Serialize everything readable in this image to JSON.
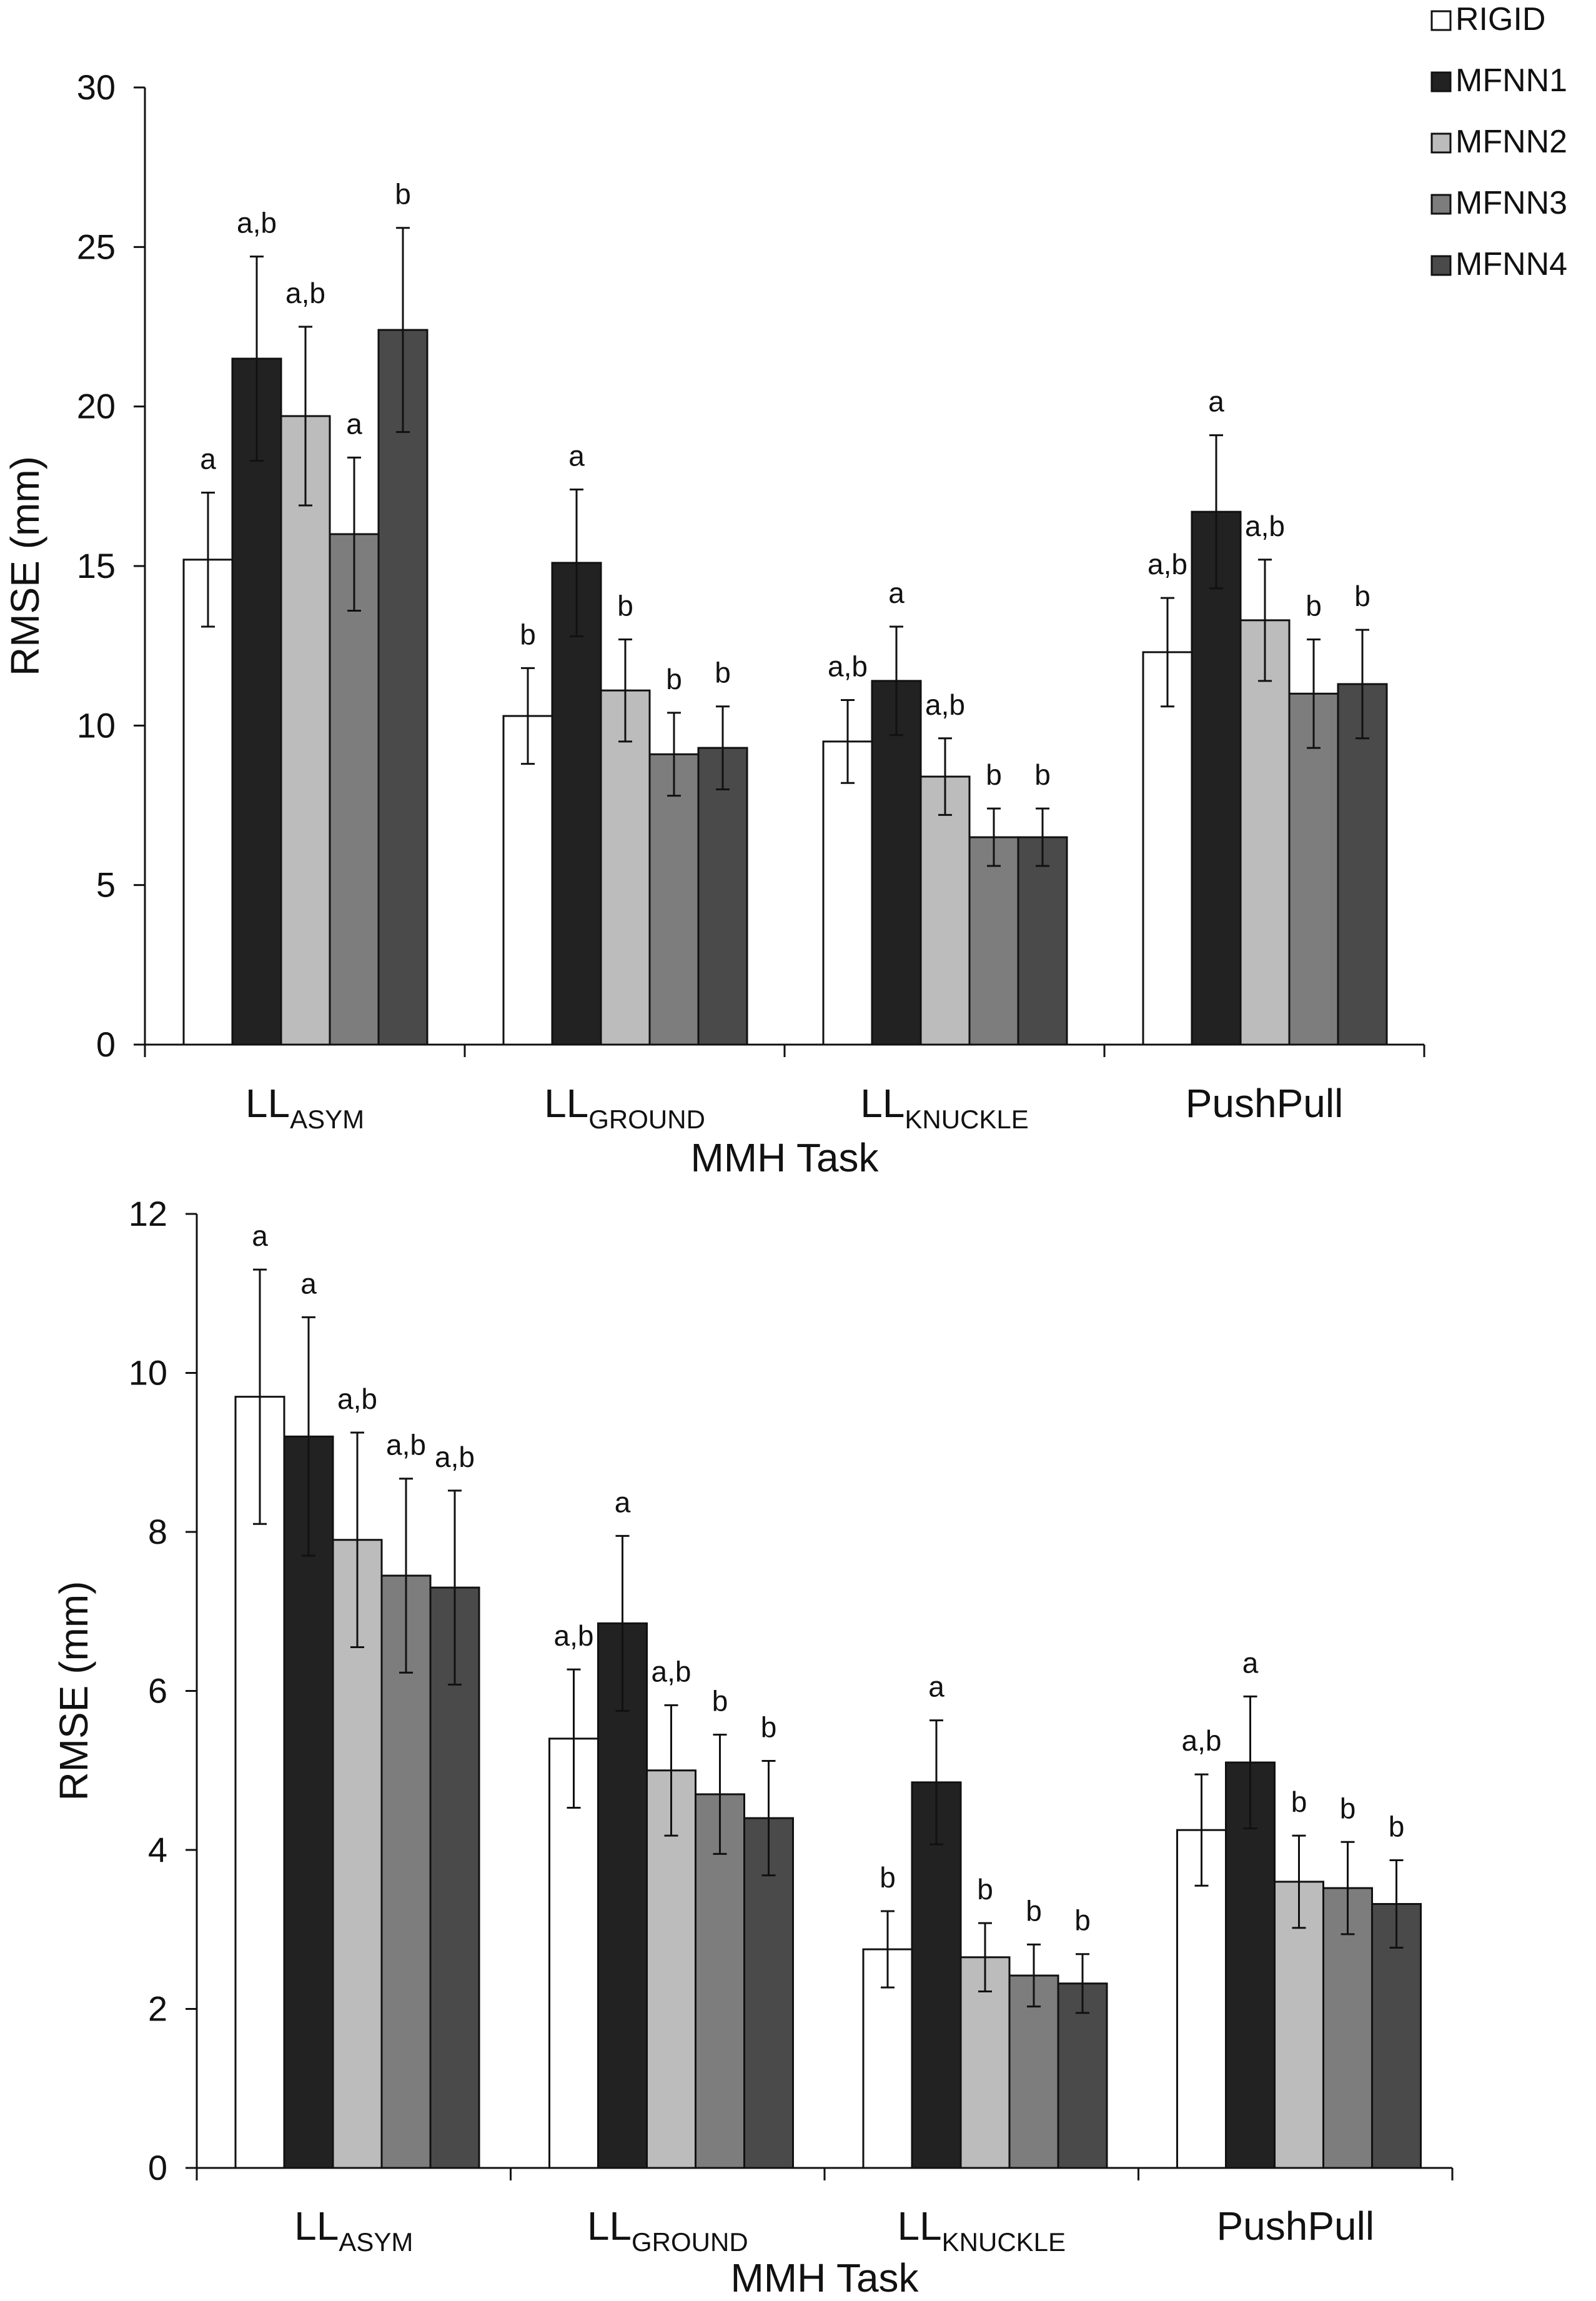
{
  "colors": {
    "series": [
      "#ffffff",
      "#222222",
      "#bcbcbc",
      "#7d7d7d",
      "#4a4a4a"
    ],
    "stroke": "#111111"
  },
  "legend": {
    "placement": "top-right",
    "entries": [
      "RIGID",
      "MFNN1",
      "MFNN2",
      "MFNN3",
      "MFNN4"
    ]
  },
  "chart_data": [
    {
      "type": "bar",
      "panel": "top",
      "xlabel": "MMH Task",
      "ylabel": "RMSE (mm)",
      "ylim": [
        0,
        30
      ],
      "yticks": [
        0,
        5,
        10,
        15,
        20,
        25,
        30
      ],
      "categories": [
        {
          "main": "LL",
          "sub": "ASYM"
        },
        {
          "main": "LL",
          "sub": "GROUND"
        },
        {
          "main": "LL",
          "sub": "KNUCKLE"
        },
        {
          "main": "PushPull",
          "sub": ""
        }
      ],
      "series": [
        {
          "name": "RIGID",
          "values": [
            15.2,
            10.3,
            9.5,
            12.3
          ],
          "errors": [
            2.1,
            1.5,
            1.3,
            1.7
          ],
          "sig": [
            "a",
            "b",
            "a,b",
            "a,b"
          ]
        },
        {
          "name": "MFNN1",
          "values": [
            21.5,
            15.1,
            11.4,
            16.7
          ],
          "errors": [
            3.2,
            2.3,
            1.7,
            2.4
          ],
          "sig": [
            "a,b",
            "a",
            "a",
            "a"
          ]
        },
        {
          "name": "MFNN2",
          "values": [
            19.7,
            11.1,
            8.4,
            13.3
          ],
          "errors": [
            2.8,
            1.6,
            1.2,
            1.9
          ],
          "sig": [
            "a,b",
            "b",
            "a,b",
            "a,b"
          ]
        },
        {
          "name": "MFNN3",
          "values": [
            16.0,
            9.1,
            6.5,
            11.0
          ],
          "errors": [
            2.4,
            1.3,
            0.9,
            1.7
          ],
          "sig": [
            "a",
            "b",
            "b",
            "b"
          ]
        },
        {
          "name": "MFNN4",
          "values": [
            22.4,
            9.3,
            6.5,
            11.3
          ],
          "errors": [
            3.2,
            1.3,
            0.9,
            1.7
          ],
          "sig": [
            "b",
            "b",
            "b",
            "b"
          ]
        }
      ]
    },
    {
      "type": "bar",
      "panel": "bottom",
      "xlabel": "MMH Task",
      "ylabel": "RMSE (mm)",
      "ylim": [
        0,
        12
      ],
      "yticks": [
        0,
        2,
        4,
        6,
        8,
        10,
        12
      ],
      "categories": [
        {
          "main": "LL",
          "sub": "ASYM"
        },
        {
          "main": "LL",
          "sub": "GROUND"
        },
        {
          "main": "LL",
          "sub": "KNUCKLE"
        },
        {
          "main": "PushPull",
          "sub": ""
        }
      ],
      "series": [
        {
          "name": "RIGID",
          "values": [
            9.7,
            5.4,
            2.75,
            4.25
          ],
          "errors": [
            1.6,
            0.87,
            0.48,
            0.7
          ],
          "sig": [
            "a",
            "a,b",
            "b",
            "a,b"
          ]
        },
        {
          "name": "MFNN1",
          "values": [
            9.2,
            6.85,
            4.85,
            5.1
          ],
          "errors": [
            1.5,
            1.1,
            0.78,
            0.83
          ],
          "sig": [
            "a",
            "a",
            "a",
            "a"
          ]
        },
        {
          "name": "MFNN2",
          "values": [
            7.9,
            5.0,
            2.65,
            3.6
          ],
          "errors": [
            1.35,
            0.82,
            0.43,
            0.58
          ],
          "sig": [
            "a,b",
            "a,b",
            "b",
            "b"
          ]
        },
        {
          "name": "MFNN3",
          "values": [
            7.45,
            4.7,
            2.42,
            3.52
          ],
          "errors": [
            1.22,
            0.75,
            0.39,
            0.58
          ],
          "sig": [
            "a,b",
            "b",
            "b",
            "b"
          ]
        },
        {
          "name": "MFNN4",
          "values": [
            7.3,
            4.4,
            2.32,
            3.32
          ],
          "errors": [
            1.22,
            0.72,
            0.37,
            0.55
          ],
          "sig": [
            "a,b",
            "b",
            "b",
            "b"
          ]
        }
      ]
    }
  ]
}
